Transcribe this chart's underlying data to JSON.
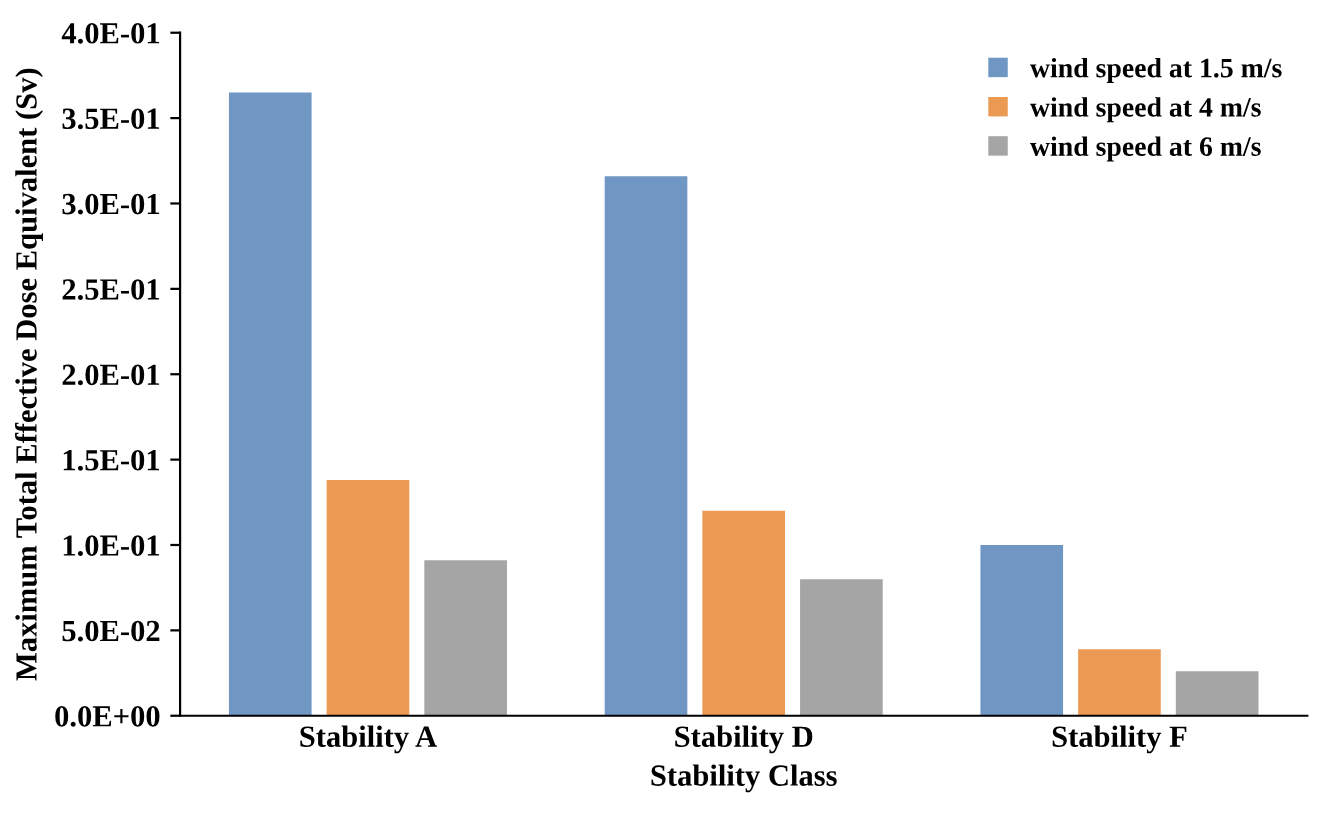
{
  "chart_data": {
    "type": "bar",
    "xlabel": "Stability Class",
    "ylabel": "Maximum Total Effective Dose Equivalent (Sv)",
    "categories": [
      "Stability A",
      "Stability D",
      "Stability F"
    ],
    "series": [
      {
        "name": "wind speed at 1.5 m/s",
        "color": "#7096c3",
        "values": [
          0.365,
          0.316,
          0.1
        ]
      },
      {
        "name": "wind speed at 4 m/s",
        "color": "#eb9a54",
        "values": [
          0.138,
          0.12,
          0.039
        ]
      },
      {
        "name": "wind speed at 6 m/s",
        "color": "#a5a5a5",
        "values": [
          0.091,
          0.08,
          0.026
        ]
      }
    ],
    "ylim": [
      0,
      0.4
    ],
    "yticks": [
      {
        "value": 0,
        "label": "0.0E+00"
      },
      {
        "value": 0.05,
        "label": "5.0E-02"
      },
      {
        "value": 0.1,
        "label": "1.0E-01"
      },
      {
        "value": 0.15,
        "label": "1.5E-01"
      },
      {
        "value": 0.2,
        "label": "2.0E-01"
      },
      {
        "value": 0.25,
        "label": "2.5E-01"
      },
      {
        "value": 0.3,
        "label": "3.0E-01"
      },
      {
        "value": 0.35,
        "label": "3.5E-01"
      },
      {
        "value": 0.4,
        "label": "4.0E-01"
      }
    ],
    "grid": false,
    "legend": "top right"
  }
}
